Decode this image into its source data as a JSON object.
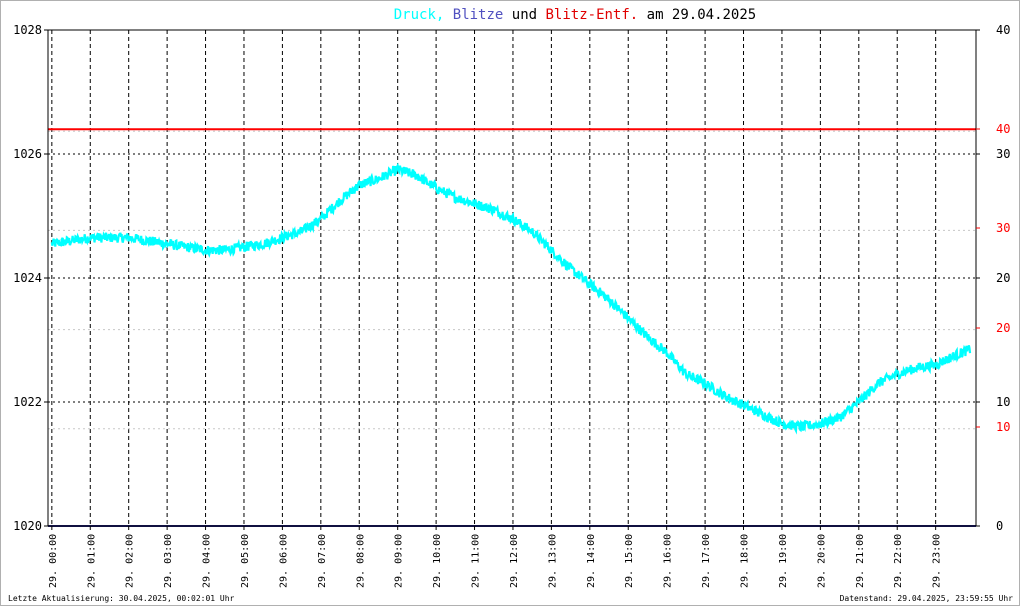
{
  "chart_data": {
    "type": "line",
    "title": {
      "parts": [
        {
          "text": "Druck",
          "color": "#00ffff"
        },
        {
          "text": ", ",
          "color": "#00ffff"
        },
        {
          "text": "Blitze",
          "color": "#5050c0"
        },
        {
          "text": " und ",
          "color": "#000000"
        },
        {
          "text": "Blitz-Entf.",
          "color": "#e00000"
        },
        {
          "text": " am 29.04.2025",
          "color": "#000000"
        }
      ]
    },
    "left_axis": {
      "range": [
        1020,
        1028
      ],
      "ticks": [
        "1020",
        "1022",
        "1024",
        "1026",
        "1028"
      ]
    },
    "right_axis_black": {
      "ticks": [
        "0",
        "10",
        "20",
        "30",
        "40"
      ]
    },
    "right_axis_red": {
      "ticks": [
        "10",
        "20",
        "30",
        "40",
        "20"
      ]
    },
    "x_axis": {
      "ticks": [
        "29. 00:00",
        "29. 01:00",
        "29. 02:00",
        "29. 03:00",
        "29. 04:00",
        "29. 05:00",
        "29. 06:00",
        "29. 07:00",
        "29. 08:00",
        "29. 09:00",
        "29. 10:00",
        "29. 11:00",
        "29. 12:00",
        "29. 13:00",
        "29. 14:00",
        "29. 15:00",
        "29. 16:00",
        "29. 17:00",
        "29. 18:00",
        "29. 19:00",
        "29. 20:00",
        "29. 21:00",
        "29. 22:00",
        "29. 23:00"
      ]
    },
    "series": [
      {
        "color": "#00ffff",
        "x_hours": [
          0,
          0.5,
          1,
          1.5,
          2,
          2.5,
          3,
          3.5,
          4,
          4.5,
          5,
          5.5,
          6,
          6.5,
          7,
          7.5,
          8,
          8.5,
          9,
          9.5,
          10,
          10.5,
          11,
          11.5,
          12,
          12.5,
          13,
          13.5,
          14,
          14.5,
          15,
          15.5,
          16,
          16.5,
          17,
          17.5,
          18,
          18.5,
          19,
          19.5,
          20,
          20.5,
          21,
          21.5,
          22,
          22.5,
          23,
          23.5,
          23.9
        ],
        "values": [
          1024.55,
          1024.6,
          1024.65,
          1024.65,
          1024.65,
          1024.6,
          1024.55,
          1024.5,
          1024.45,
          1024.45,
          1024.5,
          1024.55,
          1024.65,
          1024.75,
          1024.95,
          1025.25,
          1025.5,
          1025.6,
          1025.75,
          1025.65,
          1025.45,
          1025.3,
          1025.2,
          1025.1,
          1024.95,
          1024.75,
          1024.45,
          1024.15,
          1023.9,
          1023.65,
          1023.35,
          1023.05,
          1022.8,
          1022.45,
          1022.3,
          1022.1,
          1021.95,
          1021.8,
          1021.65,
          1021.6,
          1021.65,
          1021.75,
          1022.0,
          1022.3,
          1022.45,
          1022.55,
          1022.6,
          1022.75,
          1022.85
        ],
        "noise": 0.08
      }
    ],
    "reference_lines": [
      {
        "color": "#ff0000",
        "value": 1026.4
      },
      {
        "color": "#202080",
        "value": 1020.0
      }
    ],
    "grid": true
  },
  "footer": {
    "left": "Letzte Aktualisierung: 30.04.2025, 00:02:01 Uhr",
    "right": "Datenstand: 29.04.2025, 23:59:55 Uhr"
  }
}
